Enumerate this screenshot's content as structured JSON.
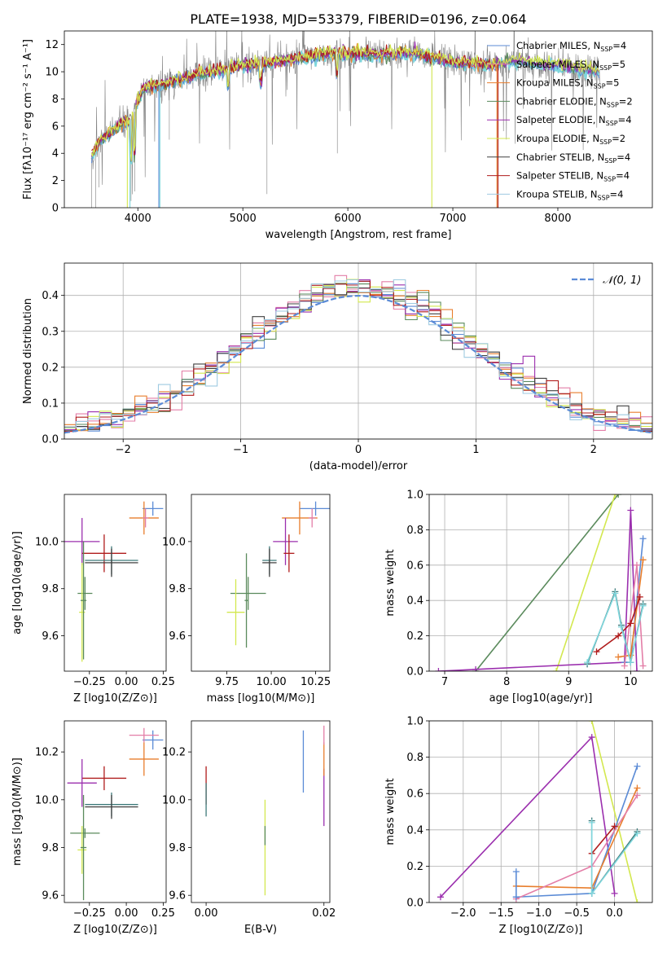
{
  "figure_title": "PLATE=1938, MJD=53379, FIBERID=0196, z=0.064",
  "colors": {
    "grey": "#808080",
    "cyan": "#7fd6dc",
    "blue": "#5b8bd6",
    "orange": "#e87e2d",
    "green": "#5a8a5c",
    "purple": "#9b2fae",
    "yellow": "#d3e84f",
    "darkgrey": "#404040",
    "red": "#b01c1c",
    "lightblue": "#9ecae1",
    "pink": "#e37ea7",
    "teal": "#3e7a7a"
  },
  "chart_data": [
    {
      "id": "spectrum",
      "type": "line",
      "title": "PLATE=1938, MJD=53379, FIBERID=0196, z=0.064",
      "xlabel": "wavelength [Angstrom, rest frame]",
      "ylabel": "Flux [fλ10⁻¹⁷ erg cm⁻² s⁻¹ A⁻¹]",
      "xlim": [
        3300,
        8900
      ],
      "ylim": [
        0,
        13
      ],
      "xticks": [
        4000,
        5000,
        6000,
        7000,
        8000
      ],
      "yticks": [
        0,
        2,
        4,
        6,
        8,
        10,
        12
      ],
      "grid": false,
      "legend": "right",
      "continuum": {
        "x": [
          3560,
          3650,
          3750,
          3850,
          3950,
          4050,
          4200,
          4400,
          4600,
          4800,
          5000,
          5200,
          5400,
          5600,
          5800,
          6000,
          6200,
          6400,
          6600,
          6800,
          7000,
          7200,
          7400,
          7600,
          7800,
          8000,
          8200,
          8400
        ],
        "y": [
          3.8,
          5.0,
          5.6,
          6.2,
          6.6,
          8.9,
          9.0,
          9.4,
          9.9,
          10.1,
          10.5,
          10.6,
          10.8,
          11.1,
          11.3,
          11.3,
          11.3,
          11.3,
          11.4,
          11.1,
          10.7,
          10.6,
          10.5,
          10.8,
          10.6,
          10.5,
          10.2,
          10.0
        ]
      },
      "series": [
        {
          "name": "Chabrier MILES, N_SSP=4",
          "color": "blue"
        },
        {
          "name": "Salpeter MILES, N_SSP=5",
          "color": "pink"
        },
        {
          "name": "Kroupa MILES, N_SSP=5",
          "color": "orange"
        },
        {
          "name": "Chabrier ELODIE, N_SSP=2",
          "color": "green"
        },
        {
          "name": "Salpeter ELODIE, N_SSP=4",
          "color": "purple"
        },
        {
          "name": "Kroupa ELODIE, N_SSP=2",
          "color": "yellow"
        },
        {
          "name": "Chabrier STELIB, N_SSP=4",
          "color": "darkgrey"
        },
        {
          "name": "Salpeter STELIB, N_SSP=4",
          "color": "red"
        },
        {
          "name": "Kroupa STELIB, N_SSP=4",
          "color": "lightblue"
        }
      ]
    },
    {
      "id": "residuals",
      "type": "step",
      "xlabel": "(data-model)/error",
      "ylabel": "Normed distribution",
      "xlim": [
        -2.5,
        2.5
      ],
      "ylim": [
        0,
        0.49
      ],
      "xticks": [
        -2,
        -1,
        0,
        1,
        2
      ],
      "yticks": [
        0.0,
        0.1,
        0.2,
        0.3,
        0.4
      ],
      "grid": true,
      "legend": "top-right",
      "gaussian_label": "𝒩(0, 1)",
      "gaussian_color": "blue"
    },
    {
      "id": "Z_age",
      "type": "errorbar",
      "xlabel": "Z [log10(Z/Z⊙)]",
      "ylabel": "age  [log10(age/yr)]",
      "xlim": [
        -0.42,
        0.27
      ],
      "ylim": [
        9.45,
        10.2
      ],
      "xticks": [
        -0.25,
        0.0,
        0.25
      ],
      "xticklabels": [
        "−0.25",
        "0.00",
        "0.25"
      ],
      "yticks": [
        9.6,
        9.8,
        10.0
      ],
      "points": [
        {
          "c": "blue",
          "x": 0.18,
          "xe": 0.07,
          "y": 10.14,
          "ye": 0.03
        },
        {
          "c": "orange",
          "x": 0.12,
          "xe": 0.1,
          "y": 10.1,
          "ye": 0.07
        },
        {
          "c": "pink",
          "x": 0.13,
          "xe": 0.02,
          "y": 10.1,
          "ye": 0.04
        },
        {
          "c": "purple",
          "x": -0.3,
          "xe": 0.12,
          "y": 10.0,
          "ye": 0.1
        },
        {
          "c": "red",
          "x": -0.15,
          "xe": 0.15,
          "y": 9.95,
          "ye": 0.08
        },
        {
          "c": "teal",
          "x": -0.1,
          "xe": 0.18,
          "y": 9.92,
          "ye": 0.06
        },
        {
          "c": "darkgrey",
          "x": -0.1,
          "xe": 0.18,
          "y": 9.91,
          "ye": 0.06
        },
        {
          "c": "green",
          "x": -0.28,
          "xe": 0.05,
          "y": 9.78,
          "ye": 0.07
        },
        {
          "c": "yellow",
          "x": -0.3,
          "xe": 0.02,
          "y": 9.7,
          "ye": 0.21
        },
        {
          "c": "green",
          "x": -0.29,
          "xe": 0.02,
          "y": 9.75,
          "ye": 0.25
        }
      ]
    },
    {
      "id": "mass_age",
      "type": "errorbar",
      "xlabel": "mass [log10(M/M⊙)]",
      "xlim": [
        9.55,
        10.33
      ],
      "ylim": [
        9.45,
        10.2
      ],
      "xticks": [
        9.75,
        10.0,
        10.25
      ],
      "xticklabels": [
        "9.75",
        "10.00",
        "10.25"
      ],
      "yticks": [
        9.6,
        9.8,
        10.0
      ],
      "points": [
        {
          "c": "blue",
          "x": 10.25,
          "xe": 0.09,
          "y": 10.14,
          "ye": 0.03
        },
        {
          "c": "orange",
          "x": 10.16,
          "xe": 0.1,
          "y": 10.1,
          "ye": 0.07
        },
        {
          "c": "pink",
          "x": 10.23,
          "xe": 0.02,
          "y": 10.1,
          "ye": 0.04
        },
        {
          "c": "purple",
          "x": 10.08,
          "xe": 0.07,
          "y": 10.0,
          "ye": 0.1
        },
        {
          "c": "red",
          "x": 10.1,
          "xe": 0.03,
          "y": 9.95,
          "ye": 0.08
        },
        {
          "c": "teal",
          "x": 9.99,
          "xe": 0.04,
          "y": 9.92,
          "ye": 0.06
        },
        {
          "c": "darkgrey",
          "x": 9.99,
          "xe": 0.04,
          "y": 9.91,
          "ye": 0.06
        },
        {
          "c": "green",
          "x": 9.87,
          "xe": 0.1,
          "y": 9.78,
          "ye": 0.07
        },
        {
          "c": "yellow",
          "x": 9.8,
          "xe": 0.05,
          "y": 9.7,
          "ye": 0.14
        },
        {
          "c": "green",
          "x": 9.86,
          "xe": 0.01,
          "y": 9.75,
          "ye": 0.2
        }
      ]
    },
    {
      "id": "age_weight",
      "type": "line",
      "xlabel": "age  [log10(age/yr)]",
      "ylabel": "mass weight",
      "xlim": [
        6.75,
        10.35
      ],
      "ylim": [
        0,
        1.0
      ],
      "xticks": [
        7,
        8,
        9,
        10
      ],
      "yticks": [
        0.0,
        0.2,
        0.4,
        0.6,
        0.8,
        1.0
      ],
      "grid": true,
      "series": [
        {
          "c": "green",
          "x": [
            7.5,
            9.8
          ],
          "y": [
            0.0,
            1.0
          ]
        },
        {
          "c": "yellow",
          "x": [
            8.8,
            9.75
          ],
          "y": [
            0.0,
            1.0
          ]
        },
        {
          "c": "purple",
          "x": [
            6.9,
            7.5,
            9.9,
            10.0,
            10.1
          ],
          "y": [
            0.0,
            0.01,
            0.05,
            0.91,
            0.0
          ]
        },
        {
          "c": "blue",
          "x": [
            9.9,
            10.0,
            10.2
          ],
          "y": [
            0.05,
            0.05,
            0.75
          ]
        },
        {
          "c": "orange",
          "x": [
            9.8,
            10.0,
            10.2
          ],
          "y": [
            0.08,
            0.09,
            0.63
          ]
        },
        {
          "c": "pink",
          "x": [
            9.9,
            10.1,
            10.2
          ],
          "y": [
            0.03,
            0.6,
            0.03
          ]
        },
        {
          "c": "red",
          "x": [
            9.45,
            9.8,
            10.0,
            10.15
          ],
          "y": [
            0.11,
            0.2,
            0.27,
            0.42
          ]
        },
        {
          "c": "teal",
          "x": [
            9.3,
            9.75,
            9.85,
            10.0,
            10.2
          ],
          "y": [
            0.04,
            0.45,
            0.26,
            0.05,
            0.38
          ]
        },
        {
          "c": "cyan",
          "x": [
            9.3,
            9.75,
            9.85,
            10.0,
            10.2
          ],
          "y": [
            0.05,
            0.44,
            0.25,
            0.05,
            0.37
          ]
        }
      ]
    },
    {
      "id": "Z_mass",
      "type": "errorbar",
      "xlabel": "Z [log10(Z/Z⊙)]",
      "ylabel": "mass [log10(M/M⊙)]",
      "xlim": [
        -0.42,
        0.27
      ],
      "ylim": [
        9.57,
        10.33
      ],
      "xticks": [
        -0.25,
        0.0,
        0.25
      ],
      "xticklabels": [
        "−0.25",
        "0.00",
        "0.25"
      ],
      "yticks": [
        9.6,
        9.8,
        10.0,
        10.2
      ],
      "points": [
        {
          "c": "blue",
          "x": 0.18,
          "xe": 0.07,
          "y": 10.25,
          "ye": 0.04
        },
        {
          "c": "pink",
          "x": 0.12,
          "xe": 0.1,
          "y": 10.27,
          "ye": 0.03
        },
        {
          "c": "orange",
          "x": 0.12,
          "xe": 0.1,
          "y": 10.17,
          "ye": 0.07
        },
        {
          "c": "red",
          "x": -0.15,
          "xe": 0.15,
          "y": 10.09,
          "ye": 0.05
        },
        {
          "c": "purple",
          "x": -0.3,
          "xe": 0.1,
          "y": 10.07,
          "ye": 0.1
        },
        {
          "c": "teal",
          "x": -0.1,
          "xe": 0.18,
          "y": 9.98,
          "ye": 0.05
        },
        {
          "c": "darkgrey",
          "x": -0.1,
          "xe": 0.18,
          "y": 9.97,
          "ye": 0.05
        },
        {
          "c": "green",
          "x": -0.28,
          "xe": 0.1,
          "y": 9.86,
          "ye": 0.02
        },
        {
          "c": "yellow",
          "x": -0.3,
          "xe": 0.03,
          "y": 9.79,
          "ye": 0.1
        },
        {
          "c": "green",
          "x": -0.29,
          "xe": 0.02,
          "y": 9.8,
          "ye": 0.22
        }
      ]
    },
    {
      "id": "EBV_mass",
      "type": "errorbar",
      "xlabel": "E(B-V)",
      "xlim": [
        -0.0025,
        0.021
      ],
      "ylim": [
        9.57,
        10.33
      ],
      "xticks": [
        0.0,
        0.02
      ],
      "xticklabels": [
        "0.00",
        "0.02"
      ],
      "yticks": [
        9.6,
        9.8,
        10.0,
        10.2
      ],
      "points": [
        {
          "c": "red",
          "x": 0.0,
          "y": 10.06,
          "ye": 0.08
        },
        {
          "c": "teal",
          "x": 0.0,
          "y": 10.0,
          "ye": 0.07
        },
        {
          "c": "blue",
          "x": 0.0165,
          "y": 10.16,
          "ye": 0.13
        },
        {
          "c": "purple",
          "x": 0.02,
          "y": 10.01,
          "ye": 0.12
        },
        {
          "c": "orange",
          "x": 0.02,
          "y": 10.17,
          "ye": 0.07
        },
        {
          "c": "pink",
          "x": 0.02,
          "y": 10.27,
          "ye": 0.04
        },
        {
          "c": "yellow",
          "x": 0.01,
          "y": 9.8,
          "ye": 0.2
        },
        {
          "c": "green",
          "x": 0.01,
          "y": 9.85,
          "ye": 0.04
        }
      ]
    },
    {
      "id": "Z_weight",
      "type": "line",
      "xlabel": "Z [log10(Z/Z⊙)]",
      "ylabel": "mass weight",
      "xlim": [
        -2.45,
        0.5
      ],
      "ylim": [
        0,
        1.0
      ],
      "xticks": [
        -2.0,
        -1.5,
        -1.0,
        -0.5,
        0.0
      ],
      "xticklabels": [
        "−2.0",
        "−1.5",
        "−1.0",
        "−0.5",
        "0.0"
      ],
      "yticks": [
        0.0,
        0.2,
        0.4,
        0.6,
        0.8,
        1.0
      ],
      "grid": true,
      "series": [
        {
          "c": "purple",
          "x": [
            -2.3,
            -0.3,
            0.0
          ],
          "y": [
            0.03,
            0.91,
            0.05
          ]
        },
        {
          "c": "yellow",
          "x": [
            -0.3,
            0.3
          ],
          "y": [
            1.0,
            0.0
          ]
        },
        {
          "c": "blue",
          "x": [
            -1.3,
            -0.3,
            0.3
          ],
          "y": [
            0.03,
            0.05,
            0.75
          ]
        },
        {
          "c": "orange",
          "x": [
            -1.3,
            -0.3,
            0.3
          ],
          "y": [
            0.09,
            0.08,
            0.63
          ]
        },
        {
          "c": "pink",
          "x": [
            -1.3,
            -0.3,
            0.3
          ],
          "y": [
            0.02,
            0.2,
            0.59
          ]
        },
        {
          "c": "red",
          "x": [
            -0.3,
            0.0
          ],
          "y": [
            0.27,
            0.42
          ]
        },
        {
          "c": "teal",
          "x": [
            -0.3,
            -0.3,
            0.3
          ],
          "y": [
            0.45,
            0.05,
            0.39
          ]
        },
        {
          "c": "cyan",
          "x": [
            -0.3,
            -0.3,
            0.3
          ],
          "y": [
            0.44,
            0.05,
            0.38
          ]
        },
        {
          "c": "blue",
          "x": [
            -1.3,
            -1.3
          ],
          "y": [
            0.03,
            0.17
          ]
        }
      ]
    }
  ]
}
